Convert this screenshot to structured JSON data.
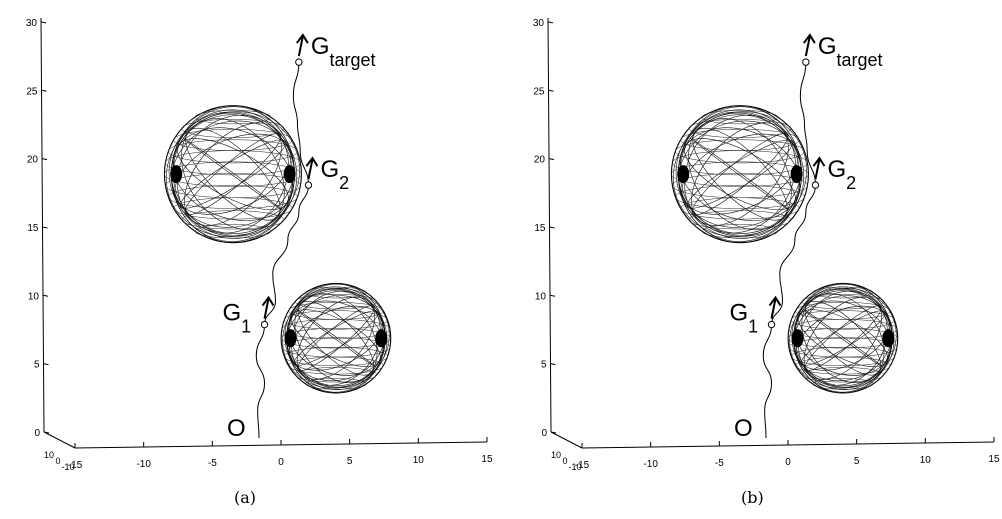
{
  "chart_data": [
    {
      "type": "line",
      "panel": "a",
      "caption": "(a)",
      "x_ticks": [
        "-15",
        "-10",
        "-5",
        "0",
        "5",
        "10",
        "15"
      ],
      "y_ticks": [
        "0",
        "5",
        "10",
        "15",
        "20",
        "25",
        "30"
      ],
      "z_ticks": [
        "10",
        "0",
        "-10"
      ],
      "xlim": [
        -15,
        15
      ],
      "ylim": [
        0,
        30
      ],
      "grid": false,
      "path": [
        [
          -1.6,
          0
        ],
        [
          -1.7,
          2
        ],
        [
          -1.2,
          4
        ],
        [
          -1.8,
          6
        ],
        [
          -1.2,
          8.3
        ],
        [
          -0.4,
          10
        ],
        [
          -0.6,
          12
        ],
        [
          0.5,
          14.5
        ],
        [
          1.3,
          16.5
        ],
        [
          2.0,
          18.5
        ],
        [
          1.4,
          21
        ],
        [
          1.2,
          23
        ],
        [
          0.9,
          25
        ],
        [
          1.3,
          27.5
        ]
      ],
      "waypoints": [
        {
          "label": "O",
          "sub": "",
          "x": -1.6,
          "y": 0
        },
        {
          "label": "G",
          "sub": "1",
          "x": -1.2,
          "y": 8.3
        },
        {
          "label": "G",
          "sub": "2",
          "x": 2.0,
          "y": 18.5
        },
        {
          "label": "G",
          "sub": "target",
          "x": 1.3,
          "y": 27.5
        }
      ],
      "obstacles": [
        {
          "cx": -3.5,
          "cy": 19.3,
          "r": 5
        },
        {
          "cx": 4.0,
          "cy": 7.3,
          "r": 4
        }
      ]
    },
    {
      "type": "line",
      "panel": "b",
      "caption": "(b)",
      "x_ticks": [
        "-15",
        "-10",
        "-5",
        "0",
        "5",
        "10",
        "15"
      ],
      "y_ticks": [
        "0",
        "5",
        "10",
        "15",
        "20",
        "25",
        "30"
      ],
      "z_ticks": [
        "10",
        "0",
        "-10"
      ],
      "xlim": [
        -15,
        15
      ],
      "ylim": [
        0,
        30
      ],
      "grid": false,
      "path": [
        [
          -1.6,
          0
        ],
        [
          -1.7,
          2
        ],
        [
          -1.2,
          4
        ],
        [
          -1.8,
          6
        ],
        [
          -1.2,
          8.3
        ],
        [
          -0.4,
          10
        ],
        [
          -0.6,
          12
        ],
        [
          0.5,
          14.5
        ],
        [
          1.3,
          16.5
        ],
        [
          2.0,
          18.5
        ],
        [
          1.4,
          21
        ],
        [
          1.2,
          23
        ],
        [
          0.9,
          25
        ],
        [
          1.3,
          27.5
        ]
      ],
      "waypoints": [
        {
          "label": "O",
          "sub": "",
          "x": -1.6,
          "y": 0
        },
        {
          "label": "G",
          "sub": "1",
          "x": -1.2,
          "y": 8.3
        },
        {
          "label": "G",
          "sub": "2",
          "x": 2.0,
          "y": 18.5
        },
        {
          "label": "G",
          "sub": "target",
          "x": 1.3,
          "y": 27.5
        }
      ],
      "obstacles": [
        {
          "cx": -3.5,
          "cy": 19.3,
          "r": 5
        },
        {
          "cx": 4.0,
          "cy": 7.3,
          "r": 4
        }
      ]
    }
  ]
}
